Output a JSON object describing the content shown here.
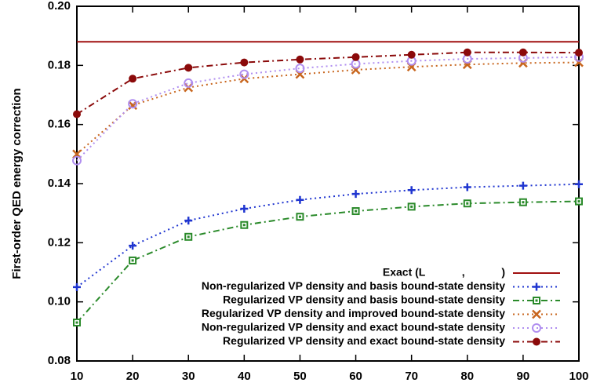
{
  "chart_data": {
    "type": "line",
    "ylabel": "First-order QED energy correction",
    "x": [
      10,
      20,
      30,
      40,
      50,
      60,
      70,
      80,
      90,
      100
    ],
    "xlim": [
      10,
      100
    ],
    "xticks": [
      10,
      20,
      30,
      40,
      50,
      60,
      70,
      80,
      90,
      100
    ],
    "ylim": [
      0.08,
      0.2
    ],
    "yticks": [
      0.08,
      {
        "value": 0.1,
        "label": "0.10"
      },
      0.12,
      0.14,
      0.16,
      0.18,
      {
        "value": 0.2,
        "label": "0.20"
      }
    ],
    "legend": "lower right",
    "series": [
      {
        "name": "Exact (L            ,            )",
        "color": "#a01010",
        "marker": "none",
        "dash": "solid",
        "values": [
          0.188,
          0.188,
          0.188,
          0.188,
          0.188,
          0.188,
          0.188,
          0.188,
          0.188,
          0.188
        ]
      },
      {
        "name": "Non-regularized VP density and basis bound-state density",
        "color": "#1f35d0",
        "marker": "plus",
        "dash": "dot",
        "values": [
          0.105,
          0.119,
          0.1275,
          0.1315,
          0.1345,
          0.1365,
          0.1378,
          0.1388,
          0.1393,
          0.1398
        ]
      },
      {
        "name": "Regularized VP density and basis bound-state density",
        "color": "#2a8a2a",
        "marker": "square",
        "dash": "dashdot",
        "values": [
          0.093,
          0.114,
          0.122,
          0.126,
          0.1288,
          0.1307,
          0.1322,
          0.1333,
          0.1337,
          0.134
        ]
      },
      {
        "name": "Regularized VP density and improved bound-state density",
        "color": "#c8661e",
        "marker": "cross",
        "dash": "dot",
        "values": [
          0.15,
          0.1665,
          0.1725,
          0.1755,
          0.177,
          0.1785,
          0.1795,
          0.1803,
          0.1808,
          0.181
        ]
      },
      {
        "name": "Non-regularized VP density and exact bound-state density",
        "color": "#b08ef0",
        "marker": "circle",
        "dash": "dot",
        "values": [
          0.1478,
          0.167,
          0.174,
          0.177,
          0.179,
          0.1805,
          0.1815,
          0.1822,
          0.1825,
          0.1828
        ]
      },
      {
        "name": "Regularized VP density and exact bound-state density",
        "color": "#8b0a0a",
        "marker": "dot",
        "dash": "dashdot",
        "values": [
          0.1635,
          0.1755,
          0.1792,
          0.181,
          0.182,
          0.1828,
          0.1836,
          0.1844,
          0.1844,
          0.1843
        ]
      }
    ]
  }
}
